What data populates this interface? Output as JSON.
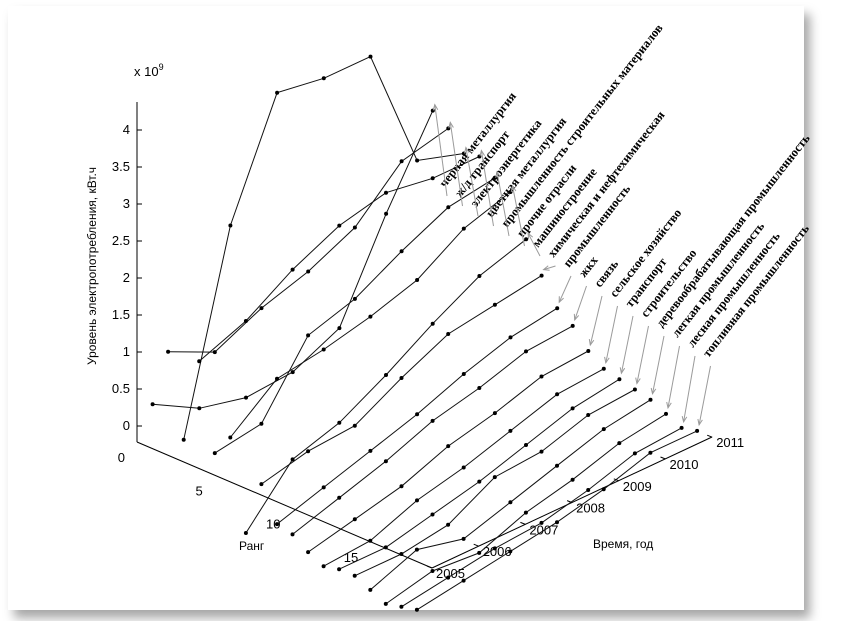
{
  "chart_data": {
    "type": "line",
    "view": "3d",
    "multiplier_label": "x 10",
    "multiplier_exp": "9",
    "zlabel": "Уровень электропотребления, кВт.ч",
    "xlabel": "Время, год",
    "ylabel": "Ранг",
    "z_ticks": [
      "0",
      "0.5",
      "1",
      "1.5",
      "2",
      "2.5",
      "3",
      "3.5",
      "4"
    ],
    "zlim": [
      0,
      4.2
    ],
    "y_ticks": [
      "0",
      "5",
      "10",
      "15"
    ],
    "x_ticks": [
      "2005",
      "2006",
      "2007",
      "2008",
      "2009",
      "2010",
      "2011"
    ],
    "grid": false,
    "series": [
      {
        "name": "черная металлургия",
        "values": [
          0.6,
          0.25,
          0.1,
          0.15,
          0.45,
          1.7,
          2.8
        ]
      },
      {
        "name": "ж/д транспорт",
        "values": [
          1.4,
          1.1,
          1.4,
          1.6,
          1.9,
          2.5,
          2.65
        ]
      },
      {
        "name": "электроэнергетика",
        "values": [
          0.3,
          2.9,
          4.4,
          4.3,
          4.3,
          2.6,
          2.4
        ]
      },
      {
        "name": "цветная металлургия",
        "values": [
          1.45,
          1.7,
          2.1,
          2.4,
          2.55,
          2.45,
          2.45
        ]
      },
      {
        "name": "промышленность строительных материалов",
        "values": [
          0.3,
          0.4,
          1.3,
          1.5,
          1.85,
          2.15,
          2.25
        ]
      },
      {
        "name": "прочие отрасли",
        "values": [
          0.6,
          1.1,
          1.2,
          1.35,
          1.55,
          1.95,
          2.15
        ]
      },
      {
        "name": "машиностроение",
        "values": [
          -0.6,
          0.1,
          0.3,
          0.65,
          1.05,
          1.4,
          1.6
        ]
      },
      {
        "name": "химическая и нефтехимическая",
        "values": [
          0.15,
          0.3,
          0.35,
          0.7,
          1.0,
          1.1,
          1.2
        ]
      },
      {
        "name": "промышленность",
        "values": [
          -0.3,
          -0.1,
          0.1,
          0.3,
          0.55,
          0.75,
          0.85
        ]
      },
      {
        "name": "жкх",
        "values": [
          -0.35,
          -0.15,
          0.05,
          0.3,
          0.45,
          0.65,
          0.7
        ]
      },
      {
        "name": "связь",
        "values": [
          -0.5,
          -0.35,
          -0.2,
          0.05,
          0.2,
          0.4,
          0.45
        ]
      },
      {
        "name": "сельское хозяйство",
        "values": [
          -0.6,
          -0.55,
          -0.3,
          -0.15,
          0.05,
          0.25,
          0.3
        ]
      },
      {
        "name": "транспорт",
        "values": [
          -0.55,
          -0.55,
          -0.4,
          -0.25,
          -0.05,
          0.15,
          0.25
        ]
      },
      {
        "name": "строительство",
        "values": [
          -0.55,
          -0.55,
          -0.45,
          -0.1,
          -0.05,
          0.15,
          0.2
        ]
      },
      {
        "name": "деревообрабатывающая промышленность",
        "values": [
          -0.65,
          -0.4,
          -0.55,
          -0.35,
          -0.15,
          0.05,
          0.15
        ]
      },
      {
        "name": "легкая промышленность",
        "values": [
          -0.75,
          -0.6,
          -0.65,
          -0.4,
          -0.25,
          -0.05,
          0.05
        ]
      },
      {
        "name": "лесная промышленность",
        "values": [
          -0.7,
          -0.6,
          -0.5,
          -0.45,
          -0.3,
          -0.1,
          -0.05
        ]
      },
      {
        "name": "топливная промышленность",
        "values": [
          -0.65,
          -0.55,
          -0.45,
          -0.35,
          -0.2,
          0.0,
          0.0
        ]
      }
    ]
  }
}
